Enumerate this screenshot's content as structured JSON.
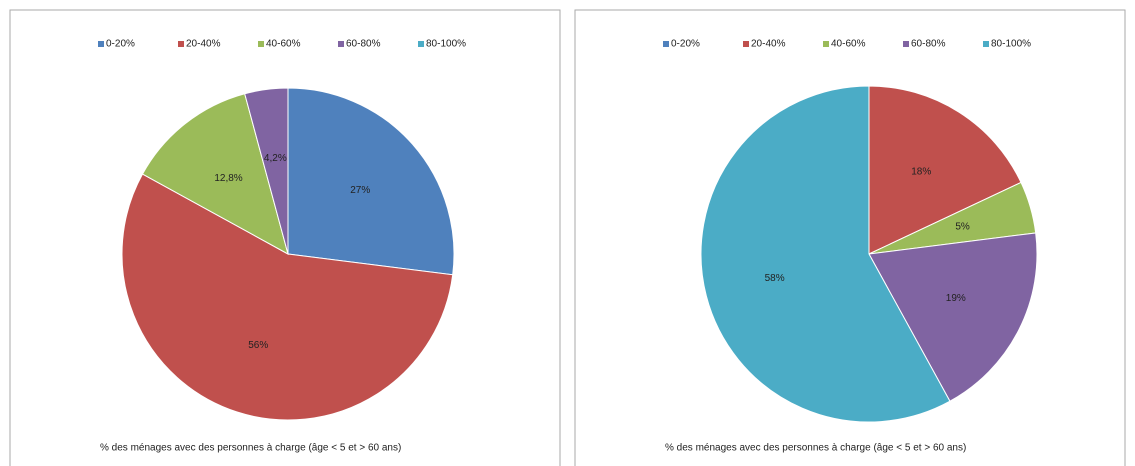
{
  "chart_data": [
    {
      "type": "pie",
      "categories": [
        "0-20%",
        "20-40%",
        "40-60%",
        "60-80%",
        "80-100%"
      ],
      "values": [
        27,
        56,
        12.8,
        4.2,
        0
      ],
      "value_labels": [
        "27%",
        "56%",
        "12,8%",
        "4,2%",
        null
      ],
      "colors": [
        "#4f81bd",
        "#c0504d",
        "#9bbb59",
        "#8064a2",
        "#4bacc6"
      ],
      "legend": "top",
      "xlabel": "% des ménages avec des personnes à charge (âge < 5 et > 60 ans)"
    },
    {
      "type": "pie",
      "categories": [
        "0-20%",
        "20-40%",
        "40-60%",
        "60-80%",
        "80-100%"
      ],
      "values": [
        0,
        18,
        5,
        19,
        58
      ],
      "value_labels": [
        null,
        "18%",
        "5%",
        "19%",
        "58%"
      ],
      "colors": [
        "#4f81bd",
        "#c0504d",
        "#9bbb59",
        "#8064a2",
        "#4bacc6"
      ],
      "legend": "top",
      "xlabel": "% des ménages avec des personnes à charge (âge < 5 et > 60 ans)"
    }
  ]
}
